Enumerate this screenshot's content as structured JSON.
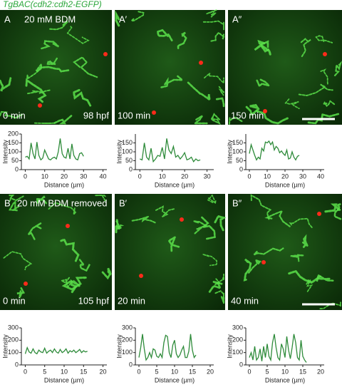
{
  "title": "TgBAC(cdh2:cdh2-EGFP)",
  "panels": [
    {
      "label": "A",
      "condition": "20 mM BDM",
      "time": "0 min",
      "stage": "98 hpf"
    },
    {
      "label": "A′",
      "time": "100 min"
    },
    {
      "label": "A″",
      "time": "150 min"
    },
    {
      "label": "B",
      "condition": "20 mM BDM removed",
      "time": "0 min",
      "stage": "105 hpf"
    },
    {
      "label": "B′",
      "time": "20 min"
    },
    {
      "label": "B″",
      "time": "40 min"
    }
  ],
  "chart_data": [
    {
      "type": "line",
      "xlabel": "Distance (µm)",
      "ylabel": "Intensity",
      "color": "#2e8b3a",
      "x": [
        0,
        1,
        2,
        3,
        4,
        5,
        6,
        7,
        8,
        9,
        10,
        11,
        12,
        13,
        14,
        15,
        16,
        17,
        18,
        19,
        20,
        21,
        22,
        23,
        24,
        25,
        26,
        27,
        28,
        29,
        30
      ],
      "values": [
        70,
        75,
        60,
        150,
        90,
        60,
        155,
        80,
        55,
        65,
        110,
        85,
        60,
        55,
        65,
        70,
        60,
        100,
        175,
        90,
        70,
        65,
        120,
        60,
        145,
        80,
        60,
        55,
        90,
        95,
        75
      ],
      "xlim": [
        -2,
        42
      ],
      "ylim": [
        0,
        200
      ],
      "xticks": [
        0,
        10,
        20,
        30,
        40
      ],
      "yticks": [
        0,
        50,
        100,
        150,
        200
      ]
    },
    {
      "type": "line",
      "xlabel": "Distance (µm)",
      "ylabel": "Intensity",
      "color": "#2e8b3a",
      "x": [
        0,
        1,
        2,
        3,
        4,
        5,
        6,
        7,
        8,
        9,
        10,
        11,
        12,
        13,
        14,
        15,
        16,
        17,
        18,
        19,
        20,
        21,
        22,
        23,
        24,
        25,
        26,
        27
      ],
      "values": [
        60,
        55,
        150,
        70,
        55,
        120,
        45,
        60,
        80,
        75,
        125,
        60,
        175,
        110,
        90,
        130,
        70,
        80,
        60,
        75,
        95,
        55,
        60,
        70,
        45,
        60,
        50,
        55
      ],
      "xlim": [
        -2,
        33
      ],
      "ylim": [
        0,
        200
      ],
      "xticks": [
        0,
        10,
        20,
        30
      ],
      "yticks": [
        0,
        50,
        100,
        150
      ]
    },
    {
      "type": "line",
      "xlabel": "Distance (µm)",
      "ylabel": "Intensity",
      "color": "#2e8b3a",
      "x": [
        0,
        1,
        2,
        3,
        4,
        5,
        6,
        7,
        8,
        9,
        10,
        11,
        12,
        13,
        14,
        15,
        16,
        17,
        18,
        19,
        20,
        21,
        22,
        23,
        24,
        25,
        26,
        27,
        28
      ],
      "values": [
        90,
        140,
        110,
        80,
        55,
        70,
        60,
        120,
        105,
        155,
        150,
        160,
        140,
        155,
        110,
        130,
        120,
        95,
        105,
        90,
        80,
        110,
        60,
        65,
        100,
        70,
        55,
        75,
        80
      ],
      "xlim": [
        -2,
        42
      ],
      "ylim": [
        0,
        200
      ],
      "xticks": [
        0,
        10,
        20,
        30,
        40
      ],
      "yticks": [
        0,
        50,
        100,
        150
      ]
    },
    {
      "type": "line",
      "xlabel": "Distance (µm)",
      "ylabel": "Intensity",
      "color": "#2e8b3a",
      "x": [
        0,
        0.5,
        1,
        1.5,
        2,
        2.5,
        3,
        3.5,
        4,
        4.5,
        5,
        5.5,
        6,
        6.5,
        7,
        7.5,
        8,
        8.5,
        9,
        9.5,
        10,
        10.5,
        11,
        11.5,
        12,
        12.5,
        13,
        13.5,
        14,
        14.5,
        15,
        15.5,
        16
      ],
      "values": [
        90,
        140,
        105,
        95,
        130,
        100,
        90,
        120,
        105,
        100,
        135,
        95,
        110,
        120,
        100,
        130,
        105,
        95,
        125,
        100,
        110,
        130,
        95,
        115,
        105,
        120,
        100,
        110,
        125,
        100,
        115,
        105,
        110
      ],
      "xlim": [
        -1,
        21
      ],
      "ylim": [
        0,
        300
      ],
      "xticks": [
        0,
        5,
        10,
        15,
        20
      ],
      "yticks": [
        0,
        100,
        200,
        300
      ]
    },
    {
      "type": "line",
      "xlabel": "Distance (µm)",
      "ylabel": "Intensity",
      "color": "#2e8b3a",
      "x": [
        0,
        0.5,
        1,
        1.5,
        2,
        2.5,
        3,
        3.5,
        4,
        4.5,
        5,
        5.5,
        6,
        6.5,
        7,
        7.5,
        8,
        8.5,
        9,
        9.5,
        10,
        10.5,
        11,
        11.5,
        12,
        12.5,
        13,
        13.5,
        14,
        14.5,
        15,
        15.5,
        16
      ],
      "values": [
        60,
        140,
        250,
        130,
        40,
        60,
        100,
        60,
        130,
        120,
        70,
        60,
        90,
        60,
        180,
        240,
        230,
        100,
        60,
        160,
        200,
        90,
        60,
        80,
        120,
        150,
        60,
        60,
        110,
        250,
        120,
        60,
        80
      ],
      "xlim": [
        -1,
        21
      ],
      "ylim": [
        0,
        300
      ],
      "xticks": [
        0,
        5,
        10,
        15,
        20
      ],
      "yticks": [
        0,
        100,
        200,
        300
      ]
    },
    {
      "type": "line",
      "xlabel": "Distance (µm)",
      "ylabel": "Intensity",
      "color": "#2e8b3a",
      "x": [
        0,
        0.5,
        1,
        1.5,
        2,
        2.5,
        3,
        3.5,
        4,
        4.5,
        5,
        5.5,
        6,
        6.5,
        7,
        7.5,
        8,
        8.5,
        9,
        9.5,
        10,
        10.5,
        11,
        11.5,
        12,
        12.5,
        13,
        13.5,
        14,
        14.5,
        15,
        15.5,
        16
      ],
      "values": [
        60,
        100,
        40,
        150,
        40,
        60,
        130,
        30,
        150,
        60,
        170,
        70,
        40,
        180,
        250,
        140,
        60,
        40,
        170,
        130,
        60,
        230,
        120,
        50,
        140,
        250,
        180,
        60,
        40,
        200,
        70,
        40,
        20
      ],
      "xlim": [
        -1,
        21
      ],
      "ylim": [
        0,
        300
      ],
      "xticks": [
        0,
        5,
        10,
        15,
        20
      ],
      "yticks": [
        0,
        100,
        200,
        300
      ]
    }
  ]
}
